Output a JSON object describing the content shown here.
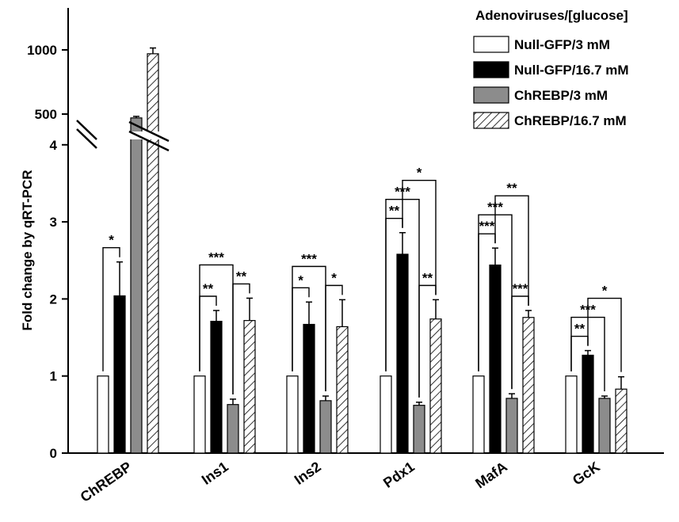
{
  "chart_data": {
    "type": "bar",
    "ylabel": "Fold change by qRT-PCR",
    "y_axis": {
      "lower_range": [
        0,
        4
      ],
      "lower_ticks": [
        "0",
        "1",
        "2",
        "3",
        "4"
      ],
      "upper_ticks": [
        "500",
        "1000"
      ],
      "axis_break": true
    },
    "legend": {
      "title": "Adenoviruses/[glucose]",
      "placement": "top-right"
    },
    "categories": [
      "ChREBP",
      "Ins1",
      "Ins2",
      "Pdx1",
      "MafA",
      "GcK"
    ],
    "series": [
      {
        "name": "Null-GFP/3 mM",
        "fill": "white",
        "values": [
          1,
          1,
          1,
          1,
          1,
          1
        ],
        "errors": [
          0,
          0,
          0,
          0,
          0,
          0
        ]
      },
      {
        "name": "Null-GFP/16.7 mM",
        "fill": "black",
        "values": [
          2.04,
          1.71,
          1.67,
          2.58,
          2.44,
          1.27
        ],
        "errors": [
          0.44,
          0.14,
          0.29,
          0.28,
          0.22,
          0.06
        ]
      },
      {
        "name": "ChREBP/3 mM",
        "fill": "gray",
        "values": [
          470,
          0.63,
          0.68,
          0.62,
          0.71,
          0.71
        ],
        "errors": [
          12,
          0.07,
          0.06,
          0.04,
          0.06,
          0.03
        ]
      },
      {
        "name": "ChREBP/16.7 mM",
        "fill": "hatched",
        "values": [
          970,
          1.72,
          1.64,
          1.74,
          1.76,
          0.83
        ],
        "errors": [
          45,
          0.29,
          0.35,
          0.25,
          0.09,
          0.16
        ]
      }
    ],
    "colors": {
      "gray": "#8c8c8c",
      "black": "#000000",
      "white": "#ffffff"
    },
    "significance": [
      {
        "category": 0,
        "from": 0,
        "to": 1,
        "label": "*"
      },
      {
        "category": 1,
        "from": 0,
        "to": 1,
        "label": "**"
      },
      {
        "category": 1,
        "from": 2,
        "to": 3,
        "label": "**"
      },
      {
        "category": 1,
        "from": 0,
        "to": 2,
        "label": "***"
      },
      {
        "category": 2,
        "from": 0,
        "to": 1,
        "label": "*"
      },
      {
        "category": 2,
        "from": 2,
        "to": 3,
        "label": "*"
      },
      {
        "category": 2,
        "from": 0,
        "to": 2,
        "label": "***"
      },
      {
        "category": 3,
        "from": 0,
        "to": 1,
        "label": "**"
      },
      {
        "category": 3,
        "from": 2,
        "to": 3,
        "label": "**"
      },
      {
        "category": 3,
        "from": 0,
        "to": 2,
        "label": "***"
      },
      {
        "category": 3,
        "from": 1,
        "to": 3,
        "label": "*"
      },
      {
        "category": 4,
        "from": 0,
        "to": 1,
        "label": "***"
      },
      {
        "category": 4,
        "from": 2,
        "to": 3,
        "label": "***"
      },
      {
        "category": 4,
        "from": 0,
        "to": 2,
        "label": "***"
      },
      {
        "category": 4,
        "from": 1,
        "to": 3,
        "label": "**"
      },
      {
        "category": 5,
        "from": 0,
        "to": 1,
        "label": "**"
      },
      {
        "category": 5,
        "from": 0,
        "to": 2,
        "label": "***"
      },
      {
        "category": 5,
        "from": 1,
        "to": 3,
        "label": "*"
      }
    ]
  }
}
